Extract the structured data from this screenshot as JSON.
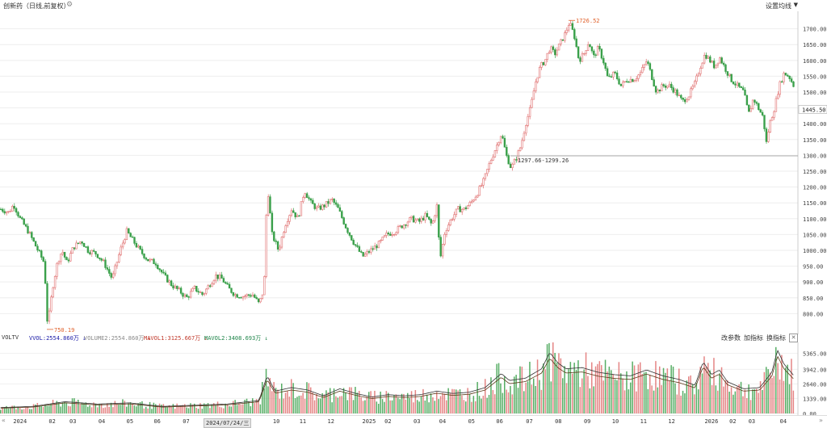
{
  "header": {
    "title": "创新药（日线,前复权）",
    "ma_settings_label": "设置均线",
    "gear_icon": "gear-icon",
    "caret_icon": "caret-down-icon"
  },
  "chart_data": [
    {
      "type": "candlestick",
      "yticks": [
        800,
        850,
        900,
        950,
        1000,
        1050,
        1100,
        1150,
        1200,
        1250,
        1300,
        1350,
        1400,
        1450,
        1500,
        1550,
        1600,
        1650,
        1700
      ],
      "ylim": [
        755,
        1745
      ],
      "max_annotation": {
        "value": 1726.52,
        "label": "1726.52"
      },
      "min_annotation": {
        "value": 750.19,
        "label": "750.19"
      },
      "hline": {
        "value": 1298.5,
        "label": "1297.66-1299.26"
      },
      "current_price_label": "1445.50",
      "close_path": [
        [
          0,
          1130
        ],
        [
          10,
          1120
        ],
        [
          16,
          1145
        ],
        [
          24,
          1100
        ],
        [
          34,
          1060
        ],
        [
          44,
          1010
        ],
        [
          54,
          960
        ],
        [
          58,
          760
        ],
        [
          64,
          880
        ],
        [
          70,
          960
        ],
        [
          76,
          1000
        ],
        [
          82,
          960
        ],
        [
          90,
          1010
        ],
        [
          100,
          1030
        ],
        [
          108,
          1000
        ],
        [
          118,
          990
        ],
        [
          128,
          960
        ],
        [
          138,
          910
        ],
        [
          148,
          1000
        ],
        [
          156,
          1060
        ],
        [
          164,
          1030
        ],
        [
          172,
          1000
        ],
        [
          182,
          970
        ],
        [
          192,
          960
        ],
        [
          202,
          920
        ],
        [
          212,
          890
        ],
        [
          222,
          870
        ],
        [
          230,
          850
        ],
        [
          240,
          880
        ],
        [
          250,
          860
        ],
        [
          258,
          890
        ],
        [
          266,
          920
        ],
        [
          274,
          910
        ],
        [
          282,
          880
        ],
        [
          290,
          860
        ],
        [
          300,
          855
        ],
        [
          312,
          860
        ],
        [
          320,
          830
        ],
        [
          326,
          880
        ],
        [
          330,
          1210
        ],
        [
          336,
          1050
        ],
        [
          344,
          1000
        ],
        [
          352,
          1080
        ],
        [
          360,
          1130
        ],
        [
          368,
          1100
        ],
        [
          376,
          1190
        ],
        [
          384,
          1150
        ],
        [
          392,
          1130
        ],
        [
          400,
          1140
        ],
        [
          410,
          1160
        ],
        [
          418,
          1130
        ],
        [
          428,
          1070
        ],
        [
          438,
          1020
        ],
        [
          448,
          980
        ],
        [
          458,
          1000
        ],
        [
          468,
          1020
        ],
        [
          478,
          1050
        ],
        [
          488,
          1060
        ],
        [
          498,
          1080
        ],
        [
          508,
          1100
        ],
        [
          518,
          1090
        ],
        [
          526,
          1110
        ],
        [
          534,
          1080
        ],
        [
          540,
          1140
        ],
        [
          544,
          970
        ],
        [
          550,
          1060
        ],
        [
          558,
          1100
        ],
        [
          566,
          1130
        ],
        [
          574,
          1130
        ],
        [
          582,
          1150
        ],
        [
          590,
          1180
        ],
        [
          598,
          1220
        ],
        [
          606,
          1280
        ],
        [
          614,
          1330
        ],
        [
          620,
          1370
        ],
        [
          626,
          1300
        ],
        [
          632,
          1260
        ],
        [
          638,
          1290
        ],
        [
          644,
          1330
        ],
        [
          650,
          1400
        ],
        [
          656,
          1450
        ],
        [
          662,
          1530
        ],
        [
          668,
          1580
        ],
        [
          674,
          1600
        ],
        [
          680,
          1640
        ],
        [
          686,
          1620
        ],
        [
          692,
          1650
        ],
        [
          698,
          1680
        ],
        [
          704,
          1720
        ],
        [
          710,
          1680
        ],
        [
          716,
          1600
        ],
        [
          722,
          1620
        ],
        [
          728,
          1660
        ],
        [
          734,
          1610
        ],
        [
          740,
          1640
        ],
        [
          746,
          1600
        ],
        [
          752,
          1540
        ],
        [
          760,
          1560
        ],
        [
          768,
          1520
        ],
        [
          776,
          1540
        ],
        [
          784,
          1540
        ],
        [
          792,
          1560
        ],
        [
          800,
          1600
        ],
        [
          806,
          1550
        ],
        [
          812,
          1500
        ],
        [
          820,
          1520
        ],
        [
          828,
          1520
        ],
        [
          836,
          1500
        ],
        [
          844,
          1470
        ],
        [
          852,
          1490
        ],
        [
          860,
          1530
        ],
        [
          866,
          1580
        ],
        [
          872,
          1620
        ],
        [
          878,
          1600
        ],
        [
          884,
          1580
        ],
        [
          890,
          1610
        ],
        [
          896,
          1580
        ],
        [
          904,
          1540
        ],
        [
          912,
          1520
        ],
        [
          920,
          1500
        ],
        [
          926,
          1430
        ],
        [
          932,
          1480
        ],
        [
          938,
          1450
        ],
        [
          944,
          1420
        ],
        [
          948,
          1340
        ],
        [
          952,
          1400
        ],
        [
          958,
          1450
        ],
        [
          964,
          1520
        ],
        [
          970,
          1560
        ],
        [
          976,
          1550
        ],
        [
          982,
          1520
        ]
      ]
    },
    {
      "type": "volume",
      "indicator": "VOLTV",
      "legend": [
        {
          "label": "VVOL:2554.860万",
          "arrow": "↓",
          "color": "#1a1aa6"
        },
        {
          "label": "VOLUME2:2554.860万",
          "arrow": "↓",
          "color": "#888888"
        },
        {
          "label": "MAVOL1:3125.667万",
          "arrow": "↓",
          "color": "#c0392b"
        },
        {
          "label": "MAVOL2:3408.693万",
          "arrow": "↓",
          "color": "#1e8449"
        }
      ],
      "yticks": [
        "5365.00",
        "3942.00",
        "2640.00",
        "1339.00",
        "0.00"
      ],
      "ytick_values": [
        5365,
        3942,
        2640,
        1339,
        0
      ],
      "ylim": [
        0,
        6200
      ],
      "volume_path": [
        [
          0,
          500
        ],
        [
          40,
          600
        ],
        [
          80,
          1000
        ],
        [
          120,
          800
        ],
        [
          160,
          900
        ],
        [
          200,
          600
        ],
        [
          240,
          700
        ],
        [
          280,
          800
        ],
        [
          320,
          1100
        ],
        [
          330,
          3200
        ],
        [
          340,
          1900
        ],
        [
          360,
          2200
        ],
        [
          380,
          2000
        ],
        [
          400,
          1500
        ],
        [
          420,
          2100
        ],
        [
          440,
          1700
        ],
        [
          460,
          1400
        ],
        [
          480,
          1600
        ],
        [
          500,
          1500
        ],
        [
          520,
          1600
        ],
        [
          540,
          1900
        ],
        [
          560,
          1700
        ],
        [
          580,
          1800
        ],
        [
          600,
          2200
        ],
        [
          620,
          3400
        ],
        [
          630,
          2800
        ],
        [
          650,
          3000
        ],
        [
          670,
          3800
        ],
        [
          680,
          5200
        ],
        [
          690,
          4300
        ],
        [
          700,
          3800
        ],
        [
          720,
          3900
        ],
        [
          740,
          3500
        ],
        [
          760,
          3300
        ],
        [
          780,
          3200
        ],
        [
          800,
          3700
        ],
        [
          820,
          3200
        ],
        [
          840,
          2900
        ],
        [
          860,
          2400
        ],
        [
          870,
          4400
        ],
        [
          880,
          3300
        ],
        [
          890,
          3700
        ],
        [
          900,
          2700
        ],
        [
          920,
          2100
        ],
        [
          940,
          2200
        ],
        [
          955,
          3500
        ],
        [
          962,
          5400
        ],
        [
          970,
          4200
        ],
        [
          985,
          3000
        ]
      ],
      "buttons": [
        "改参数",
        "加指标",
        "换指标"
      ]
    }
  ],
  "xaxis": {
    "labels": [
      {
        "text": "2024",
        "x": 0.016
      },
      {
        "text": "02",
        "x": 0.059
      },
      {
        "text": "03",
        "x": 0.084
      },
      {
        "text": "04",
        "x": 0.119
      },
      {
        "text": "05",
        "x": 0.153
      },
      {
        "text": "06",
        "x": 0.186
      },
      {
        "text": "07",
        "x": 0.221
      },
      {
        "text": "10",
        "x": 0.33
      },
      {
        "text": "11",
        "x": 0.362
      },
      {
        "text": "12",
        "x": 0.396
      },
      {
        "text": "2025",
        "x": 0.438
      },
      {
        "text": "02",
        "x": 0.465
      },
      {
        "text": "03",
        "x": 0.5
      },
      {
        "text": "04",
        "x": 0.531
      },
      {
        "text": "05",
        "x": 0.566
      },
      {
        "text": "06",
        "x": 0.6
      },
      {
        "text": "07",
        "x": 0.636
      },
      {
        "text": "08",
        "x": 0.671
      },
      {
        "text": "09",
        "x": 0.706
      },
      {
        "text": "10",
        "x": 0.74
      },
      {
        "text": "11",
        "x": 0.774
      },
      {
        "text": "12",
        "x": 0.808
      },
      {
        "text": "2026",
        "x": 0.852
      },
      {
        "text": "02",
        "x": 0.882
      },
      {
        "text": "03",
        "x": 0.905
      },
      {
        "text": "04",
        "x": 0.943
      }
    ],
    "cursor_date": "2024/07/24/三",
    "nav_left": "«",
    "nav_right": "»"
  },
  "colors": {
    "up": "#e07070",
    "down": "#3aa04a",
    "ma1": "#333333",
    "ma2": "#5b3a1a",
    "annotation": "#e0602a"
  }
}
